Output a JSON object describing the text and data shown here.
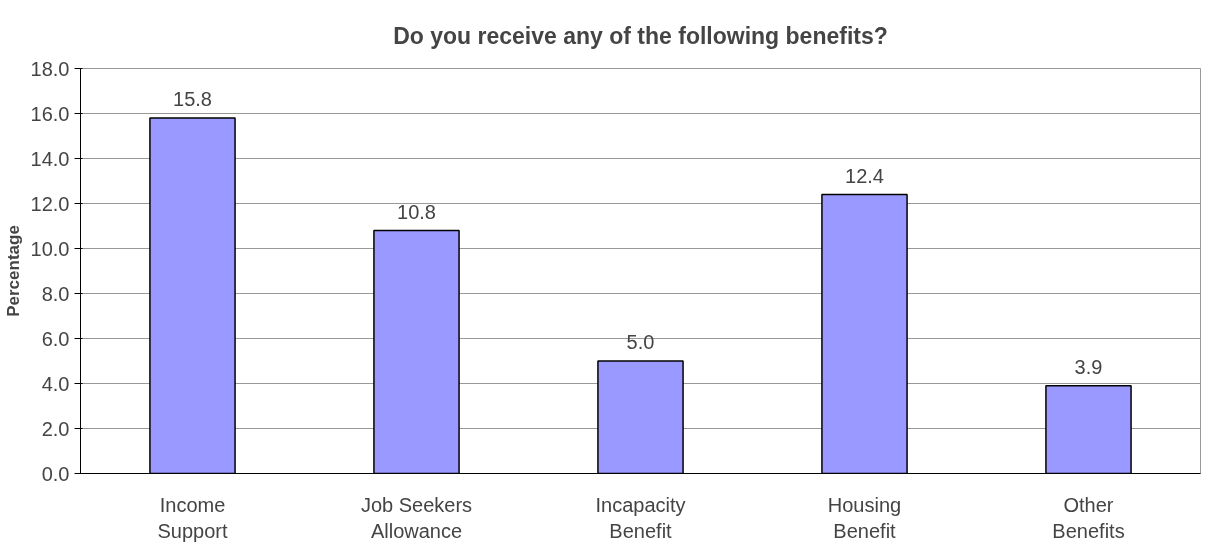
{
  "chart_data": {
    "type": "bar",
    "title": "Do you receive any of the following benefits?",
    "ylabel": "Percentage",
    "categories": [
      "Income\nSupport",
      "Job Seekers\nAllowance",
      "Incapacity\nBenefit",
      "Housing\nBenefit",
      "Other\nBenefits"
    ],
    "values": [
      15.8,
      10.8,
      5.0,
      12.4,
      3.9
    ],
    "color": "#9999ff",
    "ylim": [
      0,
      18
    ],
    "yticks": [
      {
        "value": 0,
        "label": "0.0"
      },
      {
        "value": 2,
        "label": "2.0"
      },
      {
        "value": 4,
        "label": "4.0"
      },
      {
        "value": 6,
        "label": "6.0"
      },
      {
        "value": 8,
        "label": "8.0"
      },
      {
        "value": 10,
        "label": "10.0"
      },
      {
        "value": 12,
        "label": "12.0"
      },
      {
        "value": 14,
        "label": "14.0"
      },
      {
        "value": 16,
        "label": "16.0"
      },
      {
        "value": 18,
        "label": "18.0"
      }
    ],
    "value_labels": [
      "15.8",
      "10.8",
      "5.0",
      "12.4",
      "3.9"
    ],
    "grid": "y"
  }
}
